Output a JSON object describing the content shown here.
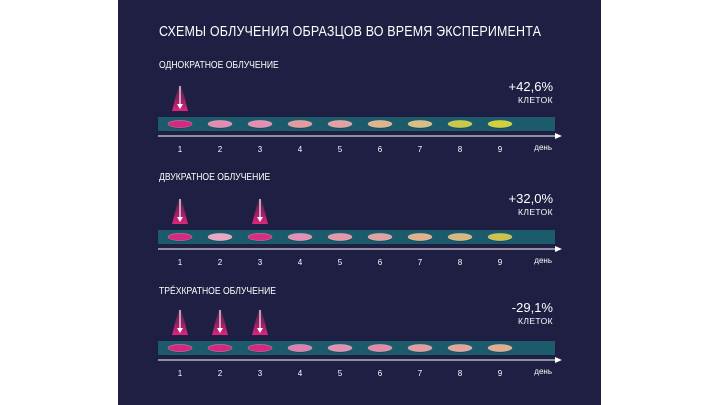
{
  "title": "СХЕМЫ ОБЛУЧЕНИЯ ОБРАЗЦОВ ВО ВРЕМЯ ЭКСПЕРИМЕНТА",
  "axis": {
    "days": [
      "1",
      "2",
      "3",
      "4",
      "5",
      "6",
      "7",
      "8",
      "9"
    ],
    "unit": "день"
  },
  "colors": {
    "background": "#1e1f42",
    "track": "#1c5b6b",
    "irradiation": "#e0257e"
  },
  "schemes": [
    {
      "label": "ОДНОКРАТНОЕ ОБЛУЧЕНИЕ",
      "result": "+42,6%",
      "result_unit": "КЛЕТОК",
      "irradiated_days": [
        1
      ],
      "dish_colors": [
        "#d8277f",
        "#e58ab3",
        "#e68db3",
        "#e49a9f",
        "#e5a0a4",
        "#e2b48d",
        "#d9bf81",
        "#c9c947",
        "#d1d034"
      ]
    },
    {
      "label": "ДВУКРАТНОЕ ОБЛУЧЕНИЕ",
      "result": "+32,0%",
      "result_unit": "КЛЕТОК",
      "irradiated_days": [
        1,
        3
      ],
      "dish_colors": [
        "#d8277f",
        "#e9a7c3",
        "#dc2c82",
        "#e58fb6",
        "#e596a8",
        "#e1a1a0",
        "#e3b08c",
        "#d9b77f",
        "#ccc24c"
      ]
    },
    {
      "label": "ТРЁХКРАТНОЕ ОБЛУЧЕНИЕ",
      "result": "-29,1%",
      "result_unit": "КЛЕТОК",
      "irradiated_days": [
        1,
        2,
        3
      ],
      "dish_colors": [
        "#d8277f",
        "#d8277f",
        "#d8277f",
        "#e07eb0",
        "#e38fb4",
        "#e48aa6",
        "#e39ca0",
        "#e2a59b",
        "#e2ac90"
      ]
    }
  ]
}
